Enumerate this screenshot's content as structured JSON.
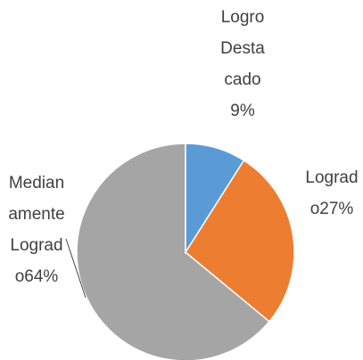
{
  "chart_data": {
    "type": "pie",
    "categories": [
      "Logro Destacado",
      "Logrado",
      "Medianamente Logrado"
    ],
    "values": [
      9,
      27,
      64
    ],
    "value_labels": [
      "9%",
      "27%",
      "64%"
    ],
    "colors": [
      "#5b9bd5",
      "#ed7d31",
      "#a5a5a5"
    ]
  }
}
